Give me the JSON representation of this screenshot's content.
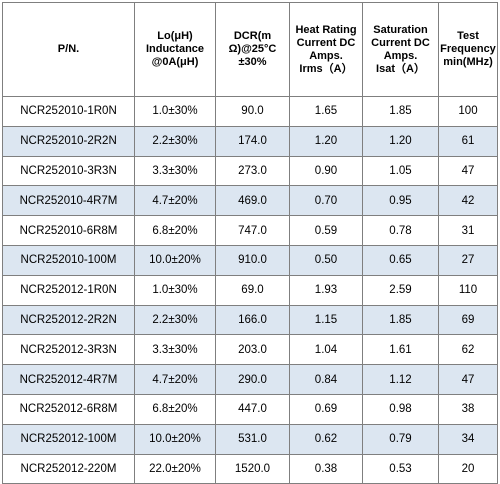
{
  "colors": {
    "shaded_row": "#dce6f1",
    "plain_row": "#ffffff",
    "border": "#7f7f7f"
  },
  "headers": [
    [
      "P/N."
    ],
    [
      "Lo(μH)",
      "Inductance",
      "@0A(μH)"
    ],
    [
      "DCR(m",
      "Ω)@25°C",
      "±30%"
    ],
    [
      "Heat Rating",
      "Current DC",
      "Amps.",
      "Irms（A）"
    ],
    [
      "Saturation",
      "Current DC",
      "Amps.",
      "Isat（A）"
    ],
    [
      "Test",
      "Frequency",
      "min(MHz)"
    ]
  ],
  "rows": [
    [
      "NCR252010-1R0N",
      "1.0±30%",
      "90.0",
      "1.65",
      "1.85",
      "100"
    ],
    [
      "NCR252010-2R2N",
      "2.2±30%",
      "174.0",
      "1.20",
      "1.20",
      "61"
    ],
    [
      "NCR252010-3R3N",
      "3.3±30%",
      "273.0",
      "0.90",
      "1.05",
      "47"
    ],
    [
      "NCR252010-4R7M",
      "4.7±20%",
      "469.0",
      "0.70",
      "0.95",
      "42"
    ],
    [
      "NCR252010-6R8M",
      "6.8±20%",
      "747.0",
      "0.59",
      "0.78",
      "31"
    ],
    [
      "NCR252010-100M",
      "10.0±20%",
      "910.0",
      "0.50",
      "0.65",
      "27"
    ],
    [
      "NCR252012-1R0N",
      "1.0±30%",
      "69.0",
      "1.93",
      "2.59",
      "110"
    ],
    [
      "NCR252012-2R2N",
      "2.2±30%",
      "166.0",
      "1.15",
      "1.85",
      "69"
    ],
    [
      "NCR252012-3R3N",
      "3.3±30%",
      "203.0",
      "1.04",
      "1.61",
      "62"
    ],
    [
      "NCR252012-4R7M",
      "4.7±20%",
      "290.0",
      "0.84",
      "1.12",
      "47"
    ],
    [
      "NCR252012-6R8M",
      "6.8±20%",
      "447.0",
      "0.69",
      "0.98",
      "38"
    ],
    [
      "NCR252012-100M",
      "10.0±20%",
      "531.0",
      "0.62",
      "0.79",
      "34"
    ],
    [
      "NCR252012-220M",
      "22.0±20%",
      "1520.0",
      "0.38",
      "0.53",
      "20"
    ]
  ]
}
